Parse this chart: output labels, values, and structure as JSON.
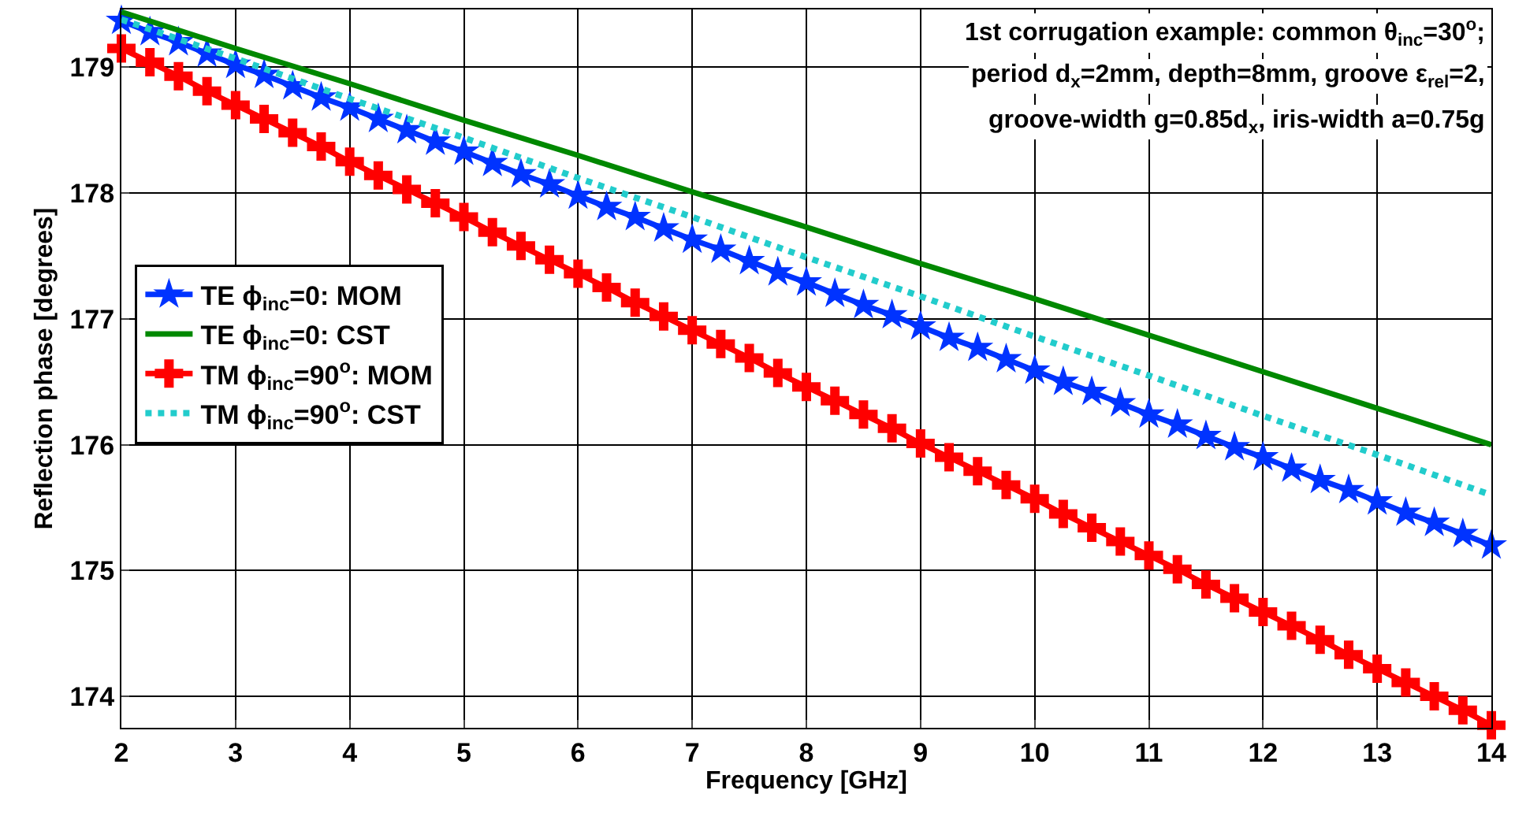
{
  "chart_data": {
    "type": "line",
    "xlabel": "Frequency [GHz]",
    "ylabel": "Reflection phase [degrees]",
    "xlim": [
      2,
      14
    ],
    "xticks": [
      2,
      3,
      4,
      5,
      6,
      7,
      8,
      9,
      10,
      11,
      12,
      13,
      14
    ],
    "ylim": [
      173.75,
      179.46
    ],
    "yticks": [
      174,
      175,
      176,
      177,
      178,
      179
    ],
    "grid": true,
    "legend": "left",
    "annotations": [
      "1st corrugation example: common θ$_{inc}$=30$^{o}$;",
      "period d$_{x}$=2mm, depth=8mm, groove ε$_{rel}$=2,",
      "groove-width g=0.85d$_{x}$, iris-width a=0.75g"
    ],
    "series": [
      {
        "name": "TE ϕ$_{inc}$=0: MOM",
        "color": "#0033ff",
        "marker": "star",
        "line_style": "solid",
        "x": [
          2,
          2.25,
          2.5,
          2.75,
          3,
          3.25,
          3.5,
          3.75,
          4,
          4.25,
          4.5,
          4.75,
          5,
          5.25,
          5.5,
          5.75,
          6,
          6.25,
          6.5,
          6.75,
          7,
          7.25,
          7.5,
          7.75,
          8,
          8.25,
          8.5,
          8.75,
          9,
          9.25,
          9.5,
          9.75,
          10,
          10.25,
          10.5,
          10.75,
          11,
          11.25,
          11.5,
          11.75,
          12,
          12.25,
          12.5,
          12.75,
          13,
          13.25,
          13.5,
          13.75,
          14
        ],
        "values": [
          179.37,
          179.28,
          179.2,
          179.11,
          179.02,
          178.94,
          178.85,
          178.76,
          178.68,
          178.59,
          178.5,
          178.41,
          178.33,
          178.24,
          178.15,
          178.07,
          177.98,
          177.89,
          177.81,
          177.72,
          177.63,
          177.55,
          177.46,
          177.37,
          177.29,
          177.2,
          177.11,
          177.03,
          176.94,
          176.85,
          176.77,
          176.68,
          176.59,
          176.5,
          176.42,
          176.33,
          176.24,
          176.16,
          176.07,
          175.98,
          175.9,
          175.81,
          175.72,
          175.64,
          175.55,
          175.46,
          175.38,
          175.29,
          175.2
        ]
      },
      {
        "name": "TE ϕ$_{inc}$=0: CST",
        "color": "#008800",
        "marker": "none",
        "line_style": "solid",
        "x": [
          2,
          3,
          4,
          5,
          6,
          7,
          8,
          9,
          10,
          11,
          12,
          13,
          14
        ],
        "values": [
          179.44,
          179.15,
          178.87,
          178.58,
          178.3,
          178.01,
          177.73,
          177.44,
          177.16,
          176.87,
          176.58,
          176.29,
          176.0
        ]
      },
      {
        "name": "TM ϕ$_{inc}$=90$^{o}$: MOM",
        "color": "#ff0000",
        "marker": "cross",
        "line_style": "solid",
        "x": [
          2,
          2.25,
          2.5,
          2.75,
          3,
          3.25,
          3.5,
          3.75,
          4,
          4.25,
          4.5,
          4.75,
          5,
          5.25,
          5.5,
          5.75,
          6,
          6.25,
          6.5,
          6.75,
          7,
          7.25,
          7.5,
          7.75,
          8,
          8.25,
          8.5,
          8.75,
          9,
          9.25,
          9.5,
          9.75,
          10,
          10.25,
          10.5,
          10.75,
          11,
          11.25,
          11.5,
          11.75,
          12,
          12.25,
          12.5,
          12.75,
          13,
          13.25,
          13.5,
          13.75,
          14
        ],
        "values": [
          179.15,
          179.04,
          178.93,
          178.81,
          178.7,
          178.59,
          178.48,
          178.37,
          178.25,
          178.14,
          178.03,
          177.92,
          177.81,
          177.69,
          177.58,
          177.47,
          177.36,
          177.25,
          177.13,
          177.02,
          176.91,
          176.8,
          176.69,
          176.57,
          176.46,
          176.35,
          176.24,
          176.13,
          176.01,
          175.9,
          175.79,
          175.68,
          175.57,
          175.45,
          175.34,
          175.23,
          175.12,
          175.01,
          174.89,
          174.78,
          174.67,
          174.56,
          174.45,
          174.33,
          174.22,
          174.11,
          174.0,
          173.89,
          173.77
        ]
      },
      {
        "name": "TM ϕ$_{inc}$=90$^{o}$: CST",
        "color": "#22cccc",
        "marker": "none",
        "line_style": "dotted",
        "x": [
          2,
          3,
          4,
          5,
          6,
          7,
          8,
          9,
          10,
          11,
          12,
          13,
          14
        ],
        "values": [
          179.38,
          179.07,
          178.75,
          178.44,
          178.12,
          177.81,
          177.49,
          177.18,
          176.86,
          176.55,
          176.23,
          175.92,
          175.6
        ]
      }
    ]
  }
}
